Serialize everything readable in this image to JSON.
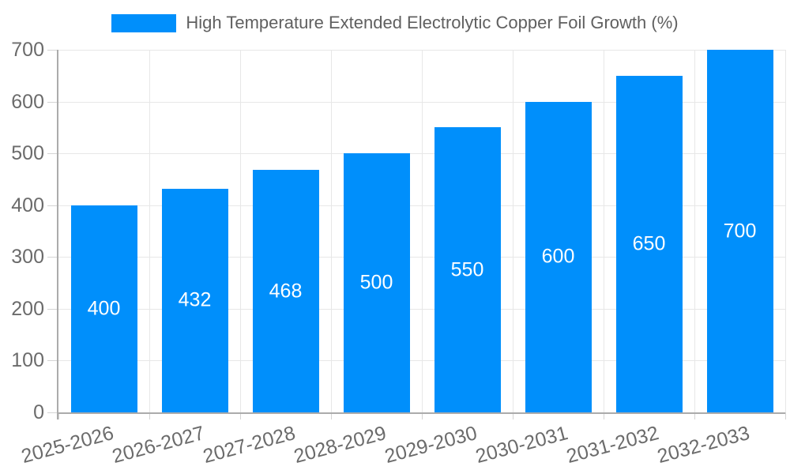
{
  "chart_data": {
    "type": "bar",
    "title": "High Temperature Extended Electrolytic Copper Foil Growth (%)",
    "categories": [
      "2025-2026",
      "2026-2027",
      "2027-2028",
      "2028-2029",
      "2029-2030",
      "2030-2031",
      "2031-2032",
      "2032-2033"
    ],
    "values": [
      400,
      432,
      468,
      500,
      550,
      600,
      650,
      700
    ],
    "xlabel": "",
    "ylabel": "",
    "ylim": [
      0,
      700
    ],
    "yticks": [
      0,
      100,
      200,
      300,
      400,
      500,
      600,
      700
    ],
    "grid": true,
    "legend_position": "top",
    "bar_value_labels_shown": true,
    "x_label_rotation_deg": -15
  },
  "colors": {
    "bar": "#008FFB",
    "bar_label": "#ffffff",
    "axis_label": "#6b6b6b",
    "legend_text": "#606060",
    "grid_line": "#e7e7e7",
    "tick_line": "#d4d4d4",
    "axis_line": "#ababab",
    "background": "#ffffff"
  }
}
